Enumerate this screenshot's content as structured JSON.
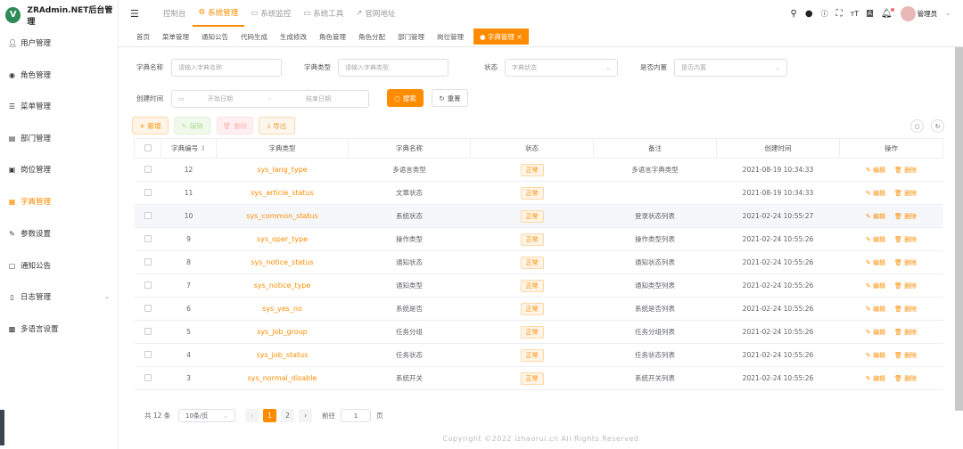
{
  "app": {
    "title": "ZRAdmin.NET后台管理",
    "logo_letter": "V",
    "accent": "#ff8c00"
  },
  "sidebar": {
    "items": [
      {
        "label": "用户管理",
        "icon": "user-icon"
      },
      {
        "label": "角色管理",
        "icon": "role-icon"
      },
      {
        "label": "菜单管理",
        "icon": "menu-icon"
      },
      {
        "label": "部门管理",
        "icon": "dept-icon"
      },
      {
        "label": "岗位管理",
        "icon": "post-icon"
      },
      {
        "label": "字典管理",
        "icon": "dict-icon",
        "active": true
      },
      {
        "label": "参数设置",
        "icon": "edit-icon"
      },
      {
        "label": "通知公告",
        "icon": "message-icon"
      },
      {
        "label": "日志管理",
        "icon": "log-icon",
        "expandable": true
      },
      {
        "label": "多语言设置",
        "icon": "language-icon"
      }
    ]
  },
  "header": {
    "nav": [
      "控制台",
      "系统管理",
      "系统监控",
      "系统工具",
      "官网地址"
    ],
    "active_nav": 1,
    "user": "管理员"
  },
  "tabs": {
    "items": [
      "首页",
      "菜单管理",
      "通知公告",
      "代码生成",
      "生成修改",
      "角色管理",
      "角色分配",
      "部门管理",
      "岗位管理",
      "字典管理"
    ],
    "active": 9
  },
  "search": {
    "dict_name_label": "字典名称",
    "dict_name_placeholder": "请输入字典名称",
    "dict_type_label": "字典类型",
    "dict_type_placeholder": "请输入字典类型",
    "status_label": "状态",
    "status_placeholder": "字典状态",
    "builtin_label": "是否内置",
    "builtin_placeholder": "是否内置",
    "time_label": "创建时间",
    "start_placeholder": "开始日期",
    "sep": "-",
    "end_placeholder": "结束日期",
    "search_btn": "搜索",
    "reset_btn": "重置"
  },
  "toolbar": {
    "add": "新增",
    "edit": "编辑",
    "delete": "删除",
    "export": "导出"
  },
  "table": {
    "columns": [
      "字典编号",
      "字典类型",
      "字典名称",
      "状态",
      "备注",
      "创建时间",
      "操作"
    ],
    "rows": [
      {
        "id": "12",
        "type": "sys_lang_type",
        "name": "多语言类型",
        "status": "正常",
        "remark": "多语言字典类型",
        "time": "2021-08-19 10:34:33"
      },
      {
        "id": "11",
        "type": "sys_article_status",
        "name": "文章状态",
        "status": "正常",
        "remark": "",
        "time": "2021-08-19 10:34:33"
      },
      {
        "id": "10",
        "type": "sys_common_status",
        "name": "系统状态",
        "status": "正常",
        "remark": "登录状态列表",
        "time": "2021-02-24 10:55:27"
      },
      {
        "id": "9",
        "type": "sys_oper_type",
        "name": "操作类型",
        "status": "正常",
        "remark": "操作类型列表",
        "time": "2021-02-24 10:55:26"
      },
      {
        "id": "8",
        "type": "sys_notice_status",
        "name": "通知状态",
        "status": "正常",
        "remark": "通知状态列表",
        "time": "2021-02-24 10:55:26"
      },
      {
        "id": "7",
        "type": "sys_notice_type",
        "name": "通知类型",
        "status": "正常",
        "remark": "通知类型列表",
        "time": "2021-02-24 10:55:26"
      },
      {
        "id": "6",
        "type": "sys_yes_no",
        "name": "系统是否",
        "status": "正常",
        "remark": "系统是否列表",
        "time": "2021-02-24 10:55:26"
      },
      {
        "id": "5",
        "type": "sys_job_group",
        "name": "任务分组",
        "status": "正常",
        "remark": "任务分组列表",
        "time": "2021-02-24 10:55:26"
      },
      {
        "id": "4",
        "type": "sys_job_status",
        "name": "任务状态",
        "status": "正常",
        "remark": "任务状态列表",
        "time": "2021-02-24 10:55:26"
      },
      {
        "id": "3",
        "type": "sys_normal_disable",
        "name": "系统开关",
        "status": "正常",
        "remark": "系统开关列表",
        "time": "2021-02-24 10:55:26"
      }
    ],
    "edit": "编辑",
    "delete": "删除"
  },
  "pagination": {
    "total": "共 12 条",
    "page_size": "10条/页",
    "pages": [
      "1",
      "2"
    ],
    "current": "1",
    "goto_label": "前往",
    "goto_value": "1",
    "page_unit": "页"
  },
  "footer": "Copyright ©2022 izhaorui.cn All Rights Reserved"
}
